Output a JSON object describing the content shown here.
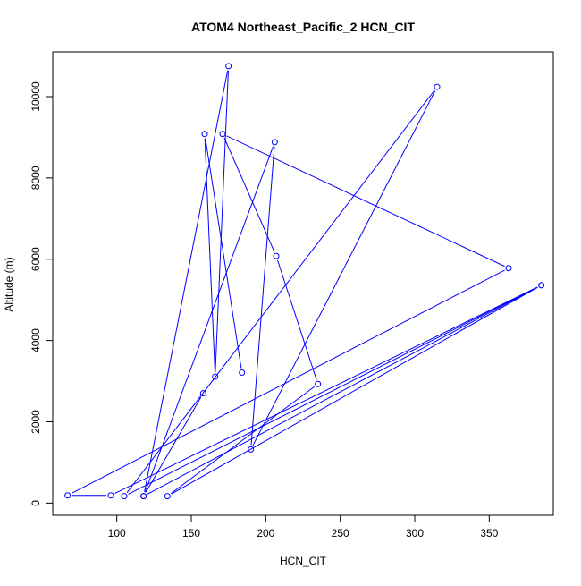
{
  "chart_data": {
    "type": "line",
    "title": "ATOM4 Northeast_Pacific_2 HCN_CIT",
    "xlabel": "HCN_CIT",
    "ylabel": "Altitude (m)",
    "xlim": [
      57,
      393
    ],
    "ylim": [
      -300,
      11100
    ],
    "x_ticks": [
      100,
      150,
      200,
      250,
      300,
      350
    ],
    "y_ticks": [
      0,
      2000,
      4000,
      6000,
      8000,
      10000
    ],
    "grid": false,
    "legend": "none",
    "markers": "open circles",
    "series": [
      {
        "color": "#0000ff",
        "points": [
          {
            "x": 184,
            "y": 3210
          },
          {
            "x": 159,
            "y": 9080
          },
          {
            "x": 166,
            "y": 3110
          },
          {
            "x": 175,
            "y": 10750
          },
          {
            "x": 118,
            "y": 170
          },
          {
            "x": 206,
            "y": 8880
          },
          {
            "x": 190,
            "y": 1320
          },
          {
            "x": 315,
            "y": 10240
          },
          {
            "x": 105,
            "y": 170
          },
          {
            "x": 385,
            "y": 5360
          },
          {
            "x": 134,
            "y": 170
          },
          {
            "x": 235,
            "y": 2930
          },
          {
            "x": 207,
            "y": 6080
          },
          {
            "x": 171,
            "y": 9080
          },
          {
            "x": 363,
            "y": 5780
          },
          {
            "x": 67,
            "y": 190
          },
          {
            "x": 96,
            "y": 190
          },
          {
            "x": 385,
            "y": 5360
          },
          {
            "x": 118,
            "y": 170
          },
          {
            "x": 158,
            "y": 2700
          }
        ]
      }
    ]
  }
}
